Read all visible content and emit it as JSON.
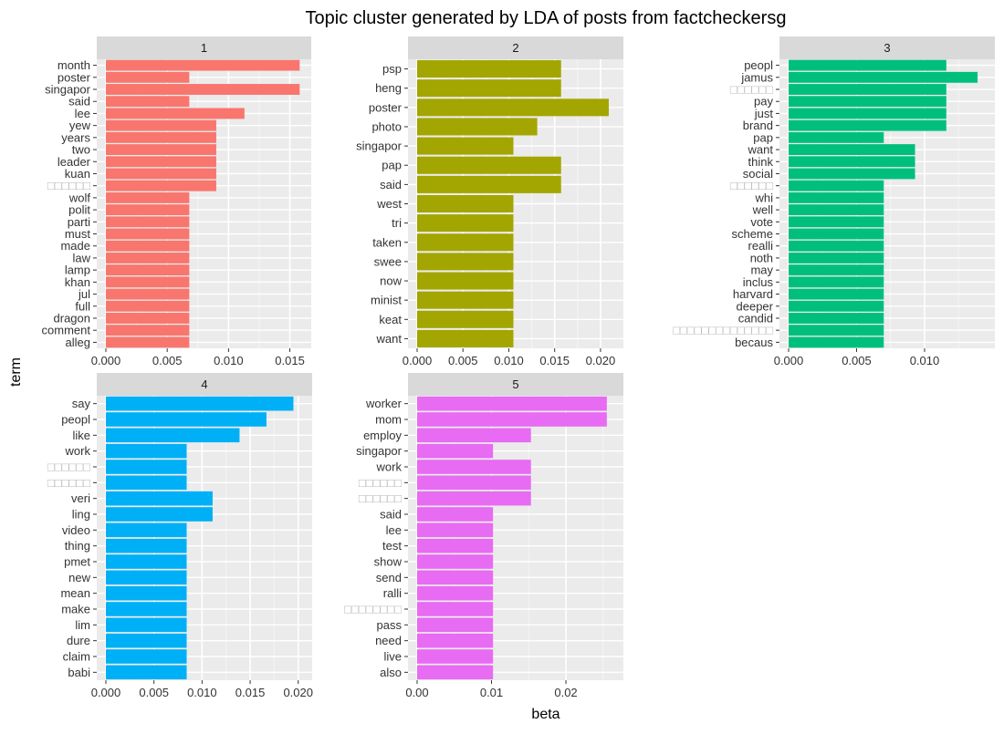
{
  "title": "Topic cluster generated by LDA of posts from factcheckersg",
  "xlabel": "beta",
  "ylabel": "term",
  "chart_data": {
    "type": "bar",
    "orientation": "horizontal",
    "faceted": true,
    "title": "Topic cluster generated by LDA of posts from factcheckersg",
    "xlabel": "beta",
    "ylabel": "term",
    "grid": true,
    "facets": [
      {
        "strip": "1",
        "color": "#F8766D",
        "xlim": [
          0,
          0.016
        ],
        "xticks": [
          "0.000",
          "0.005",
          "0.010",
          "0.015"
        ],
        "tick_values": [
          0,
          0.005,
          0.01,
          0.015
        ],
        "categories": [
          "month",
          "poster",
          "singapor",
          "said",
          "lee",
          "yew",
          "years",
          "two",
          "leader",
          "kuan",
          "□□□□□□",
          "wolf",
          "polit",
          "parti",
          "must",
          "made",
          "law",
          "lamp",
          "khan",
          "jul",
          "full",
          "dragon",
          "comment",
          "alleg"
        ],
        "values": [
          0.0158,
          0.0068,
          0.0158,
          0.0068,
          0.0113,
          0.009,
          0.009,
          0.009,
          0.009,
          0.009,
          0.009,
          0.0068,
          0.0068,
          0.0068,
          0.0068,
          0.0068,
          0.0068,
          0.0068,
          0.0068,
          0.0068,
          0.0068,
          0.0068,
          0.0068,
          0.0068
        ]
      },
      {
        "strip": "2",
        "color": "#A3A500",
        "xlim": [
          0,
          0.0215
        ],
        "xticks": [
          "0.000",
          "0.005",
          "0.010",
          "0.015",
          "0.020"
        ],
        "tick_values": [
          0,
          0.005,
          0.01,
          0.015,
          0.02
        ],
        "categories": [
          "psp",
          "heng",
          "poster",
          "photo",
          "singapor",
          "pap",
          "said",
          "west",
          "tri",
          "taken",
          "swee",
          "now",
          "minist",
          "keat",
          "want"
        ],
        "values": [
          0.0157,
          0.0157,
          0.0209,
          0.0131,
          0.0105,
          0.0157,
          0.0157,
          0.0105,
          0.0105,
          0.0105,
          0.0105,
          0.0105,
          0.0105,
          0.0105,
          0.0105
        ]
      },
      {
        "strip": "3",
        "color": "#00BF7D",
        "xlim": [
          0,
          0.0145
        ],
        "xticks": [
          "0.000",
          "0.005",
          "0.010"
        ],
        "tick_values": [
          0,
          0.005,
          0.01
        ],
        "categories": [
          "peopl",
          "jamus",
          "□□□□□□",
          "pay",
          "just",
          "brand",
          "pap",
          "want",
          "think",
          "social",
          "□□□□□□",
          "whi",
          "well",
          "vote",
          "scheme",
          "realli",
          "noth",
          "may",
          "inclus",
          "harvard",
          "deeper",
          "candid",
          "□□□□□□□□□□□□□□",
          "becaus"
        ],
        "values": [
          0.0116,
          0.0139,
          0.0116,
          0.0116,
          0.0116,
          0.0116,
          0.007,
          0.0093,
          0.0093,
          0.0093,
          0.007,
          0.007,
          0.007,
          0.007,
          0.007,
          0.007,
          0.007,
          0.007,
          0.007,
          0.007,
          0.007,
          0.007,
          0.007,
          0.007
        ]
      },
      {
        "strip": "4",
        "color": "#00B0F6",
        "xlim": [
          0,
          0.0205
        ],
        "xticks": [
          "0.000",
          "0.005",
          "0.010",
          "0.015",
          "0.020"
        ],
        "tick_values": [
          0,
          0.005,
          0.01,
          0.015,
          0.02
        ],
        "categories": [
          "say",
          "peopl",
          "like",
          "work",
          "□□□□□□",
          "□□□□□□",
          "veri",
          "ling",
          "video",
          "thing",
          "pmet",
          "new",
          "mean",
          "make",
          "lim",
          "dure",
          "claim",
          "babi"
        ],
        "values": [
          0.0195,
          0.0167,
          0.0139,
          0.0084,
          0.0084,
          0.0084,
          0.0111,
          0.0111,
          0.0084,
          0.0084,
          0.0084,
          0.0084,
          0.0084,
          0.0084,
          0.0084,
          0.0084,
          0.0084,
          0.0084
        ]
      },
      {
        "strip": "5",
        "color": "#E76BF3",
        "xlim": [
          0,
          0.0265
        ],
        "xticks": [
          "0.00",
          "0.01",
          "0.02"
        ],
        "tick_values": [
          0,
          0.01,
          0.02
        ],
        "categories": [
          "worker",
          "mom",
          "employ",
          "singapor",
          "work",
          "□□□□□□",
          "□□□□□□",
          "said",
          "lee",
          "test",
          "show",
          "send",
          "ralli",
          "□□□□□□□□",
          "pass",
          "need",
          "live",
          "also"
        ],
        "values": [
          0.0255,
          0.0255,
          0.0153,
          0.0102,
          0.0153,
          0.0153,
          0.0153,
          0.0102,
          0.0102,
          0.0102,
          0.0102,
          0.0102,
          0.0102,
          0.0102,
          0.0102,
          0.0102,
          0.0102,
          0.0102
        ]
      }
    ]
  }
}
